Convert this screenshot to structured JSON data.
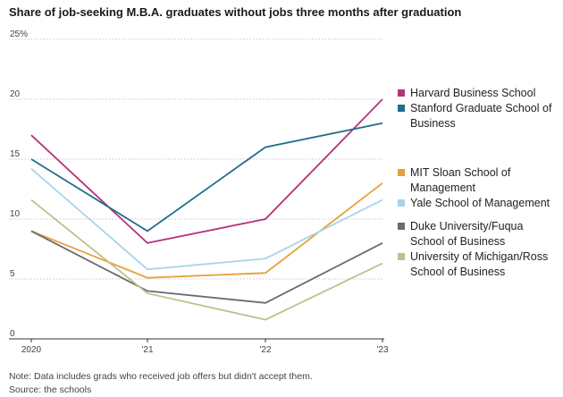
{
  "chart_data": {
    "type": "line",
    "title": "Share of job-seeking M.B.A. graduates without jobs three months after graduation",
    "x": [
      "2020",
      "'21",
      "'22",
      "'23"
    ],
    "ylim": [
      0,
      25
    ],
    "yticks": [
      "0",
      "5",
      "10",
      "15",
      "20",
      "25%"
    ],
    "grid": true,
    "legend_position": "right",
    "series": [
      {
        "name": "Harvard Business School",
        "color": "#b5327c",
        "values": [
          17,
          8,
          10,
          20
        ]
      },
      {
        "name": "Stanford Graduate School of Business",
        "color": "#1f6e8c",
        "values": [
          15,
          9,
          16,
          18
        ]
      },
      {
        "name": "MIT Sloan School of Management",
        "color": "#e4a23a",
        "values": [
          9,
          5.1,
          5.5,
          13
        ]
      },
      {
        "name": "Yale School of Management",
        "color": "#a9d4ea",
        "values": [
          14.2,
          5.8,
          6.7,
          11.6
        ]
      },
      {
        "name": "Duke University/Fuqua School of Business",
        "color": "#6b6b6b",
        "values": [
          9,
          4,
          3,
          8
        ]
      },
      {
        "name": "University of Michigan/Ross School of Business",
        "color": "#c3bf8c",
        "values": [
          11.6,
          3.8,
          1.6,
          6.3
        ]
      }
    ]
  },
  "note": "Note: Data includes grads who received job offers but didn't accept them.",
  "source": "Source: the schools"
}
